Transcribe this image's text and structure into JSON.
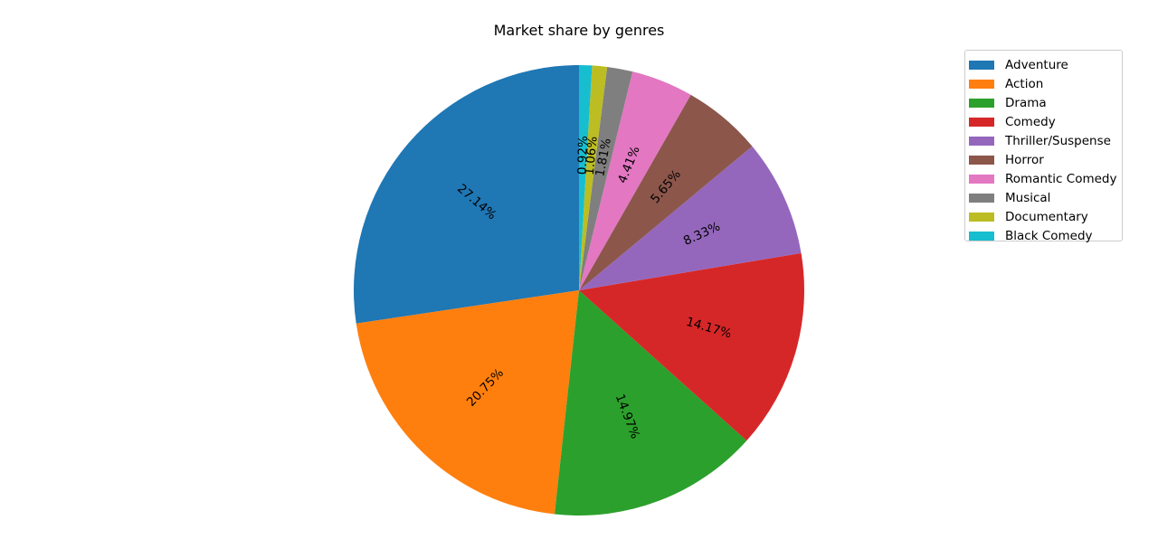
{
  "chart_data": {
    "type": "pie",
    "title": "Market share by genres",
    "legend_position": "top-right",
    "slices": [
      {
        "label": "Adventure",
        "value": 27.14,
        "display": "27.14%",
        "color": "#1f77b4"
      },
      {
        "label": "Action",
        "value": 20.75,
        "display": "20.75%",
        "color": "#ff7f0e"
      },
      {
        "label": "Drama",
        "value": 14.97,
        "display": "14.97%",
        "color": "#2ca02c"
      },
      {
        "label": "Comedy",
        "value": 14.17,
        "display": "14.17%",
        "color": "#d62728"
      },
      {
        "label": "Thriller/Suspense",
        "value": 8.33,
        "display": "8.33%",
        "color": "#9467bd"
      },
      {
        "label": "Horror",
        "value": 5.65,
        "display": "5.65%",
        "color": "#8c564b"
      },
      {
        "label": "Romantic Comedy",
        "value": 4.41,
        "display": "4.41%",
        "color": "#e377c2"
      },
      {
        "label": "Musical",
        "value": 1.81,
        "display": "1.81%",
        "color": "#7f7f7f"
      },
      {
        "label": "Documentary",
        "value": 1.06,
        "display": "1.06%",
        "color": "#bcbd22"
      },
      {
        "label": "Black Comedy",
        "value": 0.92,
        "display": "0.92%",
        "color": "#17becf"
      }
    ]
  }
}
